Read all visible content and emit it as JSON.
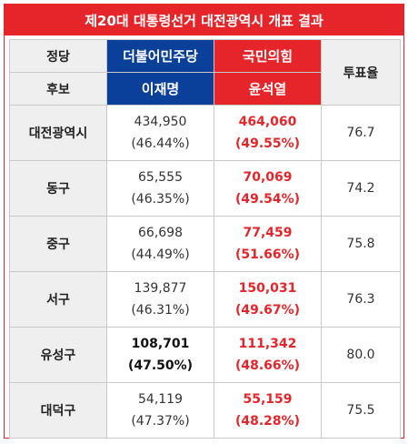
{
  "title": "제20대 대통령선거 대전광역시 개표 결과",
  "header": {
    "party_label": "정당",
    "candidate_label": "후보",
    "turnout_label": "투표율",
    "party1": "더불어민주당",
    "candidate1": "이재명",
    "party2": "국민의힘",
    "candidate2": "윤석열"
  },
  "colors": {
    "red": "#e5252a",
    "blue": "#0a3f9a"
  },
  "rows": [
    {
      "region": "대전광역시",
      "c1_votes": "434,950",
      "c1_pct": "(46.44%)",
      "c2_votes": "464,060",
      "c2_pct": "(49.55%)",
      "turnout": "76.7"
    },
    {
      "region": "동구",
      "c1_votes": "65,555",
      "c1_pct": "(46.35%)",
      "c2_votes": "70,069",
      "c2_pct": "(49.54%)",
      "turnout": "74.2"
    },
    {
      "region": "중구",
      "c1_votes": "66,698",
      "c1_pct": "(44.49%)",
      "c2_votes": "77,459",
      "c2_pct": "(51.66%)",
      "turnout": "75.8"
    },
    {
      "region": "서구",
      "c1_votes": "139,877",
      "c1_pct": "(46.31%)",
      "c2_votes": "150,031",
      "c2_pct": "(49.67%)",
      "turnout": "76.3"
    },
    {
      "region": "유성구",
      "c1_votes": "108,701",
      "c1_pct": "(47.50%)",
      "c2_votes": "111,342",
      "c2_pct": "(48.66%)",
      "turnout": "80.0"
    },
    {
      "region": "대덕구",
      "c1_votes": "54,119",
      "c1_pct": "(47.37%)",
      "c2_votes": "55,159",
      "c2_pct": "(48.28%)",
      "turnout": "75.5"
    }
  ]
}
